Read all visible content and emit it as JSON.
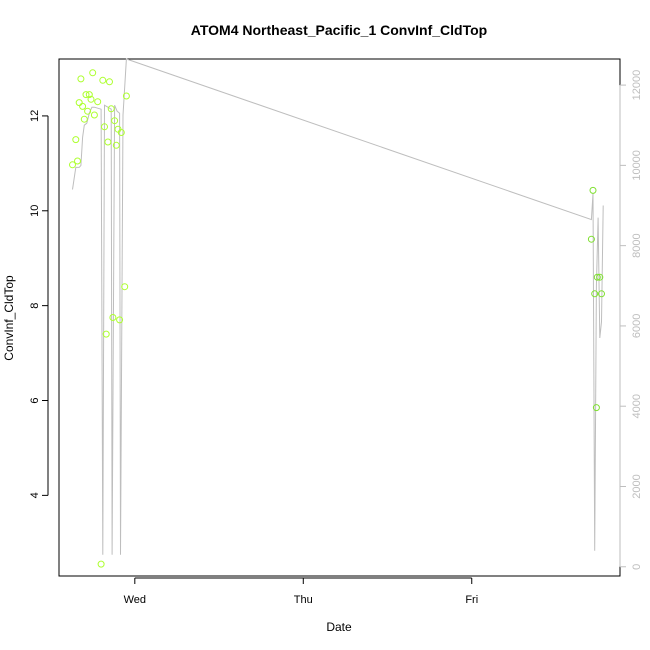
{
  "chart_data": {
    "type": "scatter",
    "title": "ATOM4 Northeast_Pacific_1 ConvInf_CldTop",
    "xlabel": "Date",
    "ylabel": "ConvInf_CldTop",
    "x_ticks": [
      "Wed",
      "Thu",
      "Fri"
    ],
    "x_tick_positions": [
      0,
      1,
      2
    ],
    "xlim": [
      -0.45,
      2.88
    ],
    "ylim": [
      2.3,
      13.2
    ],
    "y_ticks": [
      4,
      6,
      8,
      10,
      12
    ],
    "y2lim": [
      -230,
      12650
    ],
    "y2_ticks": [
      0,
      2000,
      4000,
      6000,
      8000,
      10000,
      12000
    ],
    "grid": false,
    "legend": "none",
    "colors": {
      "points": "#adff2f",
      "points_late": "#7fe030",
      "line": "#bebebe",
      "axis": "#000000",
      "axis_right": "#bebebe"
    },
    "series": [
      {
        "type": "scatter",
        "axis": "left",
        "values": [
          [
            -0.37,
            10.97
          ],
          [
            -0.35,
            11.5
          ],
          [
            -0.34,
            11.05
          ],
          [
            -0.33,
            12.28
          ],
          [
            -0.32,
            12.78
          ],
          [
            -0.31,
            12.2
          ],
          [
            -0.3,
            11.93
          ],
          [
            -0.29,
            12.45
          ],
          [
            -0.28,
            12.1
          ],
          [
            -0.27,
            12.45
          ],
          [
            -0.26,
            12.35
          ],
          [
            -0.25,
            12.91
          ],
          [
            -0.24,
            12.02
          ],
          [
            -0.2,
            2.55
          ],
          [
            -0.22,
            12.3
          ],
          [
            -0.19,
            12.75
          ],
          [
            -0.18,
            11.77
          ],
          [
            -0.17,
            7.4
          ],
          [
            -0.16,
            11.45
          ],
          [
            -0.15,
            12.72
          ],
          [
            -0.14,
            12.15
          ],
          [
            -0.13,
            7.75
          ],
          [
            -0.12,
            11.9
          ],
          [
            -0.11,
            11.38
          ],
          [
            -0.1,
            11.72
          ],
          [
            -0.09,
            7.7
          ],
          [
            -0.08,
            11.65
          ],
          [
            -0.06,
            8.4
          ],
          [
            -0.05,
            12.42
          ],
          [
            2.71,
            9.4
          ],
          [
            2.72,
            10.43
          ],
          [
            2.73,
            8.25
          ],
          [
            2.74,
            5.85
          ],
          [
            2.745,
            8.6
          ],
          [
            2.76,
            8.6
          ],
          [
            2.77,
            8.25
          ]
        ]
      },
      {
        "type": "line",
        "axis": "right",
        "values": [
          [
            -0.37,
            9400
          ],
          [
            -0.35,
            9950
          ],
          [
            -0.33,
            9950
          ],
          [
            -0.32,
            10000
          ],
          [
            -0.31,
            10700
          ],
          [
            -0.3,
            11000
          ],
          [
            -0.285,
            11050
          ],
          [
            -0.27,
            11300
          ],
          [
            -0.255,
            11450
          ],
          [
            -0.24,
            11450
          ],
          [
            -0.2,
            11400
          ],
          [
            -0.19,
            300
          ],
          [
            -0.18,
            11500
          ],
          [
            -0.16,
            11450
          ],
          [
            -0.14,
            11400
          ],
          [
            -0.135,
            300
          ],
          [
            -0.12,
            11500
          ],
          [
            -0.105,
            11350
          ],
          [
            -0.09,
            11300
          ],
          [
            -0.085,
            300
          ],
          [
            -0.07,
            11250
          ],
          [
            -0.05,
            12650
          ],
          [
            2.71,
            8650
          ],
          [
            2.72,
            9300
          ],
          [
            2.73,
            400
          ],
          [
            2.74,
            7000
          ],
          [
            2.75,
            8700
          ],
          [
            2.76,
            5700
          ],
          [
            2.77,
            6100
          ],
          [
            2.78,
            9000
          ]
        ]
      }
    ]
  }
}
